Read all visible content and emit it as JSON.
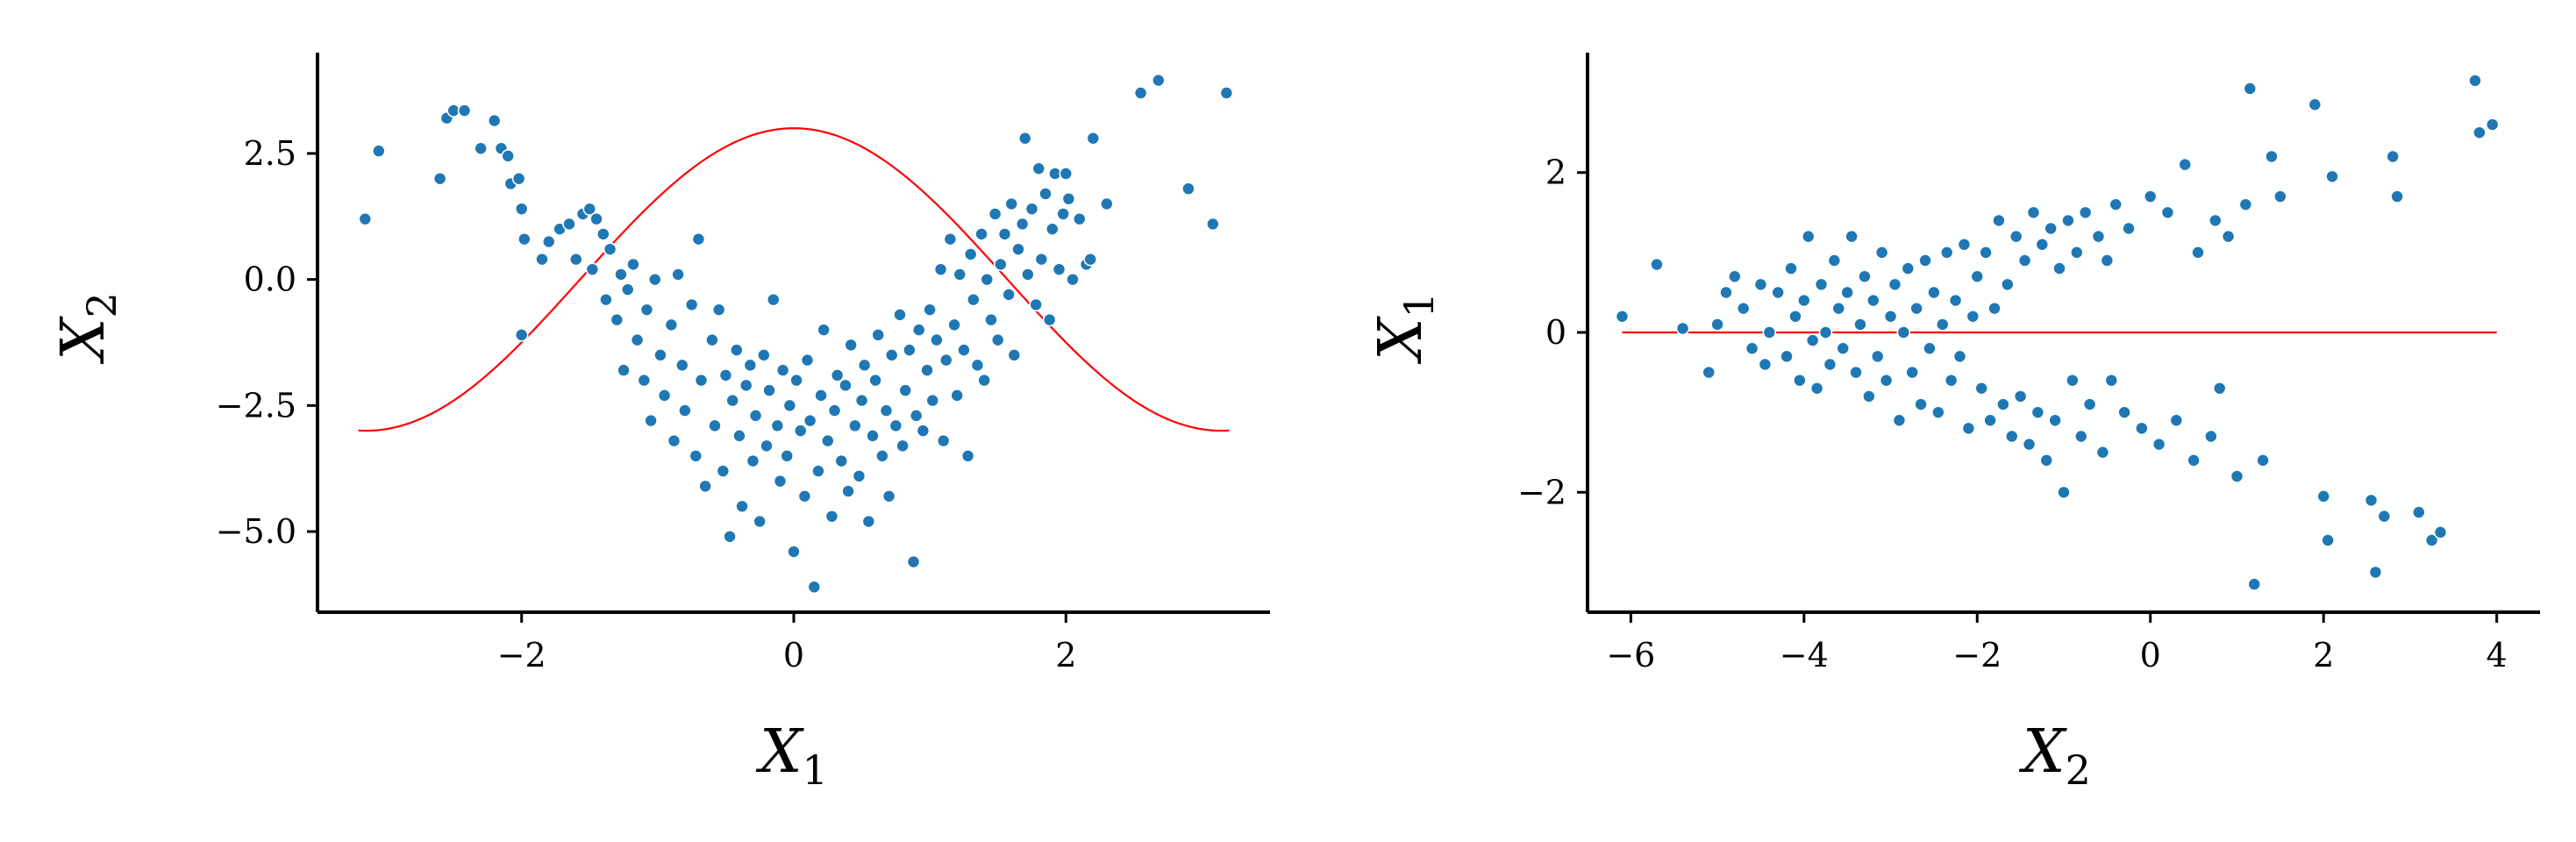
{
  "chart_data": [
    {
      "type": "scatter",
      "xlabel": "X",
      "xlabel_sub": "1",
      "ylabel": "X",
      "ylabel_sub": "2",
      "xlim": [
        -3.5,
        3.5
      ],
      "ylim": [
        -6.6,
        4.5
      ],
      "xticks": [
        -2,
        0,
        2
      ],
      "xtick_labels": [
        "−2",
        "0",
        "2"
      ],
      "yticks": [
        -5.0,
        -2.5,
        0.0,
        2.5
      ],
      "ytick_labels": [
        "−5.0",
        "−2.5",
        "0.0",
        "2.5"
      ],
      "grid": false,
      "point_color": "#1f77b4",
      "curve_color": "#ff0000",
      "curve": {
        "label": "",
        "formula": "3*cos(x)",
        "x_range": [
          -3.2,
          3.2
        ]
      },
      "points": [
        [
          -3.15,
          1.2
        ],
        [
          -3.05,
          2.55
        ],
        [
          -2.6,
          2.0
        ],
        [
          -2.55,
          3.2
        ],
        [
          -2.5,
          3.35
        ],
        [
          -2.42,
          3.35
        ],
        [
          -2.3,
          2.6
        ],
        [
          -2.2,
          3.15
        ],
        [
          -2.15,
          2.6
        ],
        [
          -2.1,
          2.45
        ],
        [
          -2.08,
          1.9
        ],
        [
          -2.02,
          2.0
        ],
        [
          -2.0,
          1.4
        ],
        [
          -2.0,
          -1.1
        ],
        [
          -1.98,
          0.8
        ],
        [
          -1.85,
          0.4
        ],
        [
          -1.8,
          0.75
        ],
        [
          -1.72,
          1.0
        ],
        [
          -1.65,
          1.1
        ],
        [
          -1.6,
          0.4
        ],
        [
          -1.55,
          1.3
        ],
        [
          -1.5,
          1.4
        ],
        [
          -1.48,
          0.2
        ],
        [
          -1.45,
          1.2
        ],
        [
          -1.4,
          0.9
        ],
        [
          -1.38,
          -0.4
        ],
        [
          -1.35,
          0.6
        ],
        [
          -1.3,
          -0.8
        ],
        [
          -1.27,
          0.1
        ],
        [
          -1.25,
          -1.8
        ],
        [
          -1.22,
          -0.2
        ],
        [
          -1.18,
          0.3
        ],
        [
          -1.15,
          -1.2
        ],
        [
          -1.1,
          -2.0
        ],
        [
          -1.08,
          -0.6
        ],
        [
          -1.05,
          -2.8
        ],
        [
          -1.02,
          0.0
        ],
        [
          -0.98,
          -1.5
        ],
        [
          -0.95,
          -2.3
        ],
        [
          -0.9,
          -0.9
        ],
        [
          -0.88,
          -3.2
        ],
        [
          -0.85,
          0.1
        ],
        [
          -0.82,
          -1.7
        ],
        [
          -0.8,
          -2.6
        ],
        [
          -0.75,
          -0.5
        ],
        [
          -0.72,
          -3.5
        ],
        [
          -0.7,
          0.8
        ],
        [
          -0.68,
          -2.0
        ],
        [
          -0.65,
          -4.1
        ],
        [
          -0.6,
          -1.2
        ],
        [
          -0.58,
          -2.9
        ],
        [
          -0.55,
          -0.6
        ],
        [
          -0.52,
          -3.8
        ],
        [
          -0.5,
          -1.9
        ],
        [
          -0.47,
          -5.1
        ],
        [
          -0.45,
          -2.4
        ],
        [
          -0.42,
          -1.4
        ],
        [
          -0.4,
          -3.1
        ],
        [
          -0.38,
          -4.5
        ],
        [
          -0.35,
          -2.1
        ],
        [
          -0.32,
          -1.7
        ],
        [
          -0.3,
          -3.6
        ],
        [
          -0.28,
          -2.7
        ],
        [
          -0.25,
          -4.8
        ],
        [
          -0.22,
          -1.5
        ],
        [
          -0.2,
          -3.3
        ],
        [
          -0.18,
          -2.2
        ],
        [
          -0.15,
          -0.4
        ],
        [
          -0.12,
          -2.9
        ],
        [
          -0.1,
          -4.0
        ],
        [
          -0.08,
          -1.8
        ],
        [
          -0.05,
          -3.5
        ],
        [
          -0.03,
          -2.5
        ],
        [
          0.0,
          -5.4
        ],
        [
          0.02,
          -2.0
        ],
        [
          0.05,
          -3.0
        ],
        [
          0.08,
          -4.3
        ],
        [
          0.1,
          -1.6
        ],
        [
          0.12,
          -2.8
        ],
        [
          0.15,
          -6.1
        ],
        [
          0.18,
          -3.8
        ],
        [
          0.2,
          -2.3
        ],
        [
          0.22,
          -1.0
        ],
        [
          0.25,
          -3.2
        ],
        [
          0.28,
          -4.7
        ],
        [
          0.3,
          -2.6
        ],
        [
          0.32,
          -1.9
        ],
        [
          0.35,
          -3.6
        ],
        [
          0.38,
          -2.1
        ],
        [
          0.4,
          -4.2
        ],
        [
          0.42,
          -1.3
        ],
        [
          0.45,
          -2.9
        ],
        [
          0.48,
          -3.9
        ],
        [
          0.5,
          -2.4
        ],
        [
          0.52,
          -1.7
        ],
        [
          0.55,
          -4.8
        ],
        [
          0.58,
          -3.1
        ],
        [
          0.6,
          -2.0
        ],
        [
          0.62,
          -1.1
        ],
        [
          0.65,
          -3.5
        ],
        [
          0.68,
          -2.6
        ],
        [
          0.7,
          -4.3
        ],
        [
          0.72,
          -1.5
        ],
        [
          0.75,
          -2.9
        ],
        [
          0.78,
          -0.7
        ],
        [
          0.8,
          -3.3
        ],
        [
          0.82,
          -2.2
        ],
        [
          0.85,
          -1.4
        ],
        [
          0.88,
          -5.6
        ],
        [
          0.9,
          -2.7
        ],
        [
          0.92,
          -1.0
        ],
        [
          0.95,
          -3.0
        ],
        [
          0.98,
          -1.8
        ],
        [
          1.0,
          -0.6
        ],
        [
          1.02,
          -2.4
        ],
        [
          1.05,
          -1.2
        ],
        [
          1.08,
          0.2
        ],
        [
          1.1,
          -3.2
        ],
        [
          1.12,
          -1.6
        ],
        [
          1.15,
          0.8
        ],
        [
          1.18,
          -0.9
        ],
        [
          1.2,
          -2.3
        ],
        [
          1.22,
          0.1
        ],
        [
          1.25,
          -1.4
        ],
        [
          1.28,
          -3.5
        ],
        [
          1.3,
          0.5
        ],
        [
          1.32,
          -0.4
        ],
        [
          1.35,
          -1.7
        ],
        [
          1.38,
          0.9
        ],
        [
          1.4,
          -2.0
        ],
        [
          1.42,
          0.0
        ],
        [
          1.45,
          -0.8
        ],
        [
          1.48,
          1.3
        ],
        [
          1.5,
          -1.2
        ],
        [
          1.52,
          0.3
        ],
        [
          1.55,
          0.9
        ],
        [
          1.58,
          -0.3
        ],
        [
          1.6,
          1.5
        ],
        [
          1.62,
          -1.5
        ],
        [
          1.65,
          0.6
        ],
        [
          1.68,
          1.1
        ],
        [
          1.7,
          2.8
        ],
        [
          1.72,
          0.1
        ],
        [
          1.75,
          1.4
        ],
        [
          1.78,
          -0.5
        ],
        [
          1.8,
          2.2
        ],
        [
          1.82,
          0.4
        ],
        [
          1.85,
          1.7
        ],
        [
          1.88,
          -0.8
        ],
        [
          1.9,
          1.0
        ],
        [
          1.92,
          2.1
        ],
        [
          1.95,
          0.2
        ],
        [
          1.98,
          1.3
        ],
        [
          2.0,
          2.1
        ],
        [
          2.02,
          1.6
        ],
        [
          2.05,
          0.0
        ],
        [
          2.1,
          1.2
        ],
        [
          2.15,
          0.3
        ],
        [
          2.18,
          0.4
        ],
        [
          2.2,
          2.8
        ],
        [
          2.3,
          1.5
        ],
        [
          2.55,
          3.7
        ],
        [
          2.68,
          3.95
        ],
        [
          2.9,
          1.8
        ],
        [
          3.08,
          1.1
        ],
        [
          3.18,
          3.7
        ]
      ]
    },
    {
      "type": "scatter",
      "xlabel": "X",
      "xlabel_sub": "2",
      "ylabel": "X",
      "ylabel_sub": "1",
      "xlim": [
        -6.5,
        4.5
      ],
      "ylim": [
        -3.5,
        3.5
      ],
      "xticks": [
        -6,
        -4,
        -2,
        0,
        2,
        4
      ],
      "xtick_labels": [
        "−6",
        "−4",
        "−2",
        "0",
        "2",
        "4"
      ],
      "yticks": [
        -2,
        0,
        2
      ],
      "ytick_labels": [
        "−2",
        "0",
        "2"
      ],
      "grid": false,
      "point_color": "#1f77b4",
      "curve_color": "#ff0000",
      "curve": {
        "label": "",
        "formula": "0",
        "x_range": [
          -6.1,
          4.0
        ]
      },
      "points": [
        [
          -6.1,
          0.2
        ],
        [
          -5.7,
          0.85
        ],
        [
          -5.4,
          0.05
        ],
        [
          -5.1,
          -0.5
        ],
        [
          -5.0,
          0.1
        ],
        [
          -4.9,
          0.5
        ],
        [
          -4.8,
          0.7
        ],
        [
          -4.7,
          0.3
        ],
        [
          -4.6,
          -0.2
        ],
        [
          -4.5,
          0.6
        ],
        [
          -4.45,
          -0.4
        ],
        [
          -4.4,
          0.0
        ],
        [
          -4.3,
          0.5
        ],
        [
          -4.2,
          -0.3
        ],
        [
          -4.15,
          0.8
        ],
        [
          -4.1,
          0.2
        ],
        [
          -4.05,
          -0.6
        ],
        [
          -4.0,
          0.4
        ],
        [
          -3.95,
          1.2
        ],
        [
          -3.9,
          -0.1
        ],
        [
          -3.85,
          -0.7
        ],
        [
          -3.8,
          0.6
        ],
        [
          -3.75,
          0.0
        ],
        [
          -3.7,
          -0.4
        ],
        [
          -3.65,
          0.9
        ],
        [
          -3.6,
          0.3
        ],
        [
          -3.55,
          -0.2
        ],
        [
          -3.5,
          0.5
        ],
        [
          -3.45,
          1.2
        ],
        [
          -3.4,
          -0.5
        ],
        [
          -3.35,
          0.1
        ],
        [
          -3.3,
          0.7
        ],
        [
          -3.25,
          -0.8
        ],
        [
          -3.2,
          0.4
        ],
        [
          -3.15,
          -0.3
        ],
        [
          -3.1,
          1.0
        ],
        [
          -3.05,
          -0.6
        ],
        [
          -3.0,
          0.2
        ],
        [
          -2.95,
          0.6
        ],
        [
          -2.9,
          -1.1
        ],
        [
          -2.85,
          0.0
        ],
        [
          -2.8,
          0.8
        ],
        [
          -2.75,
          -0.5
        ],
        [
          -2.7,
          0.3
        ],
        [
          -2.65,
          -0.9
        ],
        [
          -2.6,
          0.9
        ],
        [
          -2.55,
          -0.2
        ],
        [
          -2.5,
          0.5
        ],
        [
          -2.45,
          -1.0
        ],
        [
          -2.4,
          0.1
        ],
        [
          -2.35,
          1.0
        ],
        [
          -2.3,
          -0.6
        ],
        [
          -2.25,
          0.4
        ],
        [
          -2.2,
          -0.3
        ],
        [
          -2.15,
          1.1
        ],
        [
          -2.1,
          -1.2
        ],
        [
          -2.05,
          0.2
        ],
        [
          -2.0,
          0.7
        ],
        [
          -1.95,
          -0.7
        ],
        [
          -1.9,
          1.0
        ],
        [
          -1.85,
          -1.1
        ],
        [
          -1.8,
          0.3
        ],
        [
          -1.75,
          1.4
        ],
        [
          -1.7,
          -0.9
        ],
        [
          -1.65,
          0.6
        ],
        [
          -1.6,
          -1.3
        ],
        [
          -1.55,
          1.2
        ],
        [
          -1.5,
          -0.8
        ],
        [
          -1.45,
          0.9
        ],
        [
          -1.4,
          -1.4
        ],
        [
          -1.35,
          1.5
        ],
        [
          -1.3,
          -1.0
        ],
        [
          -1.25,
          1.1
        ],
        [
          -1.2,
          -1.6
        ],
        [
          -1.15,
          1.3
        ],
        [
          -1.1,
          -1.1
        ],
        [
          -1.05,
          0.8
        ],
        [
          -1.0,
          -2.0
        ],
        [
          -0.95,
          1.4
        ],
        [
          -0.9,
          -0.6
        ],
        [
          -0.85,
          1.0
        ],
        [
          -0.8,
          -1.3
        ],
        [
          -0.75,
          1.5
        ],
        [
          -0.7,
          -0.9
        ],
        [
          -0.6,
          1.2
        ],
        [
          -0.55,
          -1.5
        ],
        [
          -0.5,
          0.9
        ],
        [
          -0.45,
          -0.6
        ],
        [
          -0.4,
          1.6
        ],
        [
          -0.3,
          -1.0
        ],
        [
          -0.25,
          1.3
        ],
        [
          -0.1,
          -1.2
        ],
        [
          0.0,
          1.7
        ],
        [
          0.1,
          -1.4
        ],
        [
          0.2,
          1.5
        ],
        [
          0.3,
          -1.1
        ],
        [
          0.4,
          2.1
        ],
        [
          0.5,
          -1.6
        ],
        [
          0.55,
          1.0
        ],
        [
          0.7,
          -1.3
        ],
        [
          0.75,
          1.4
        ],
        [
          0.8,
          -0.7
        ],
        [
          0.9,
          1.2
        ],
        [
          1.0,
          -1.8
        ],
        [
          1.1,
          1.6
        ],
        [
          1.15,
          3.05
        ],
        [
          1.2,
          -3.15
        ],
        [
          1.3,
          -1.6
        ],
        [
          1.4,
          2.2
        ],
        [
          1.5,
          1.7
        ],
        [
          1.9,
          2.85
        ],
        [
          2.0,
          -2.05
        ],
        [
          2.05,
          -2.6
        ],
        [
          2.1,
          1.95
        ],
        [
          2.55,
          -2.1
        ],
        [
          2.6,
          -3.0
        ],
        [
          2.7,
          -2.3
        ],
        [
          2.8,
          2.2
        ],
        [
          2.85,
          1.7
        ],
        [
          3.1,
          -2.25
        ],
        [
          3.25,
          -2.6
        ],
        [
          3.35,
          -2.5
        ],
        [
          3.75,
          3.15
        ],
        [
          3.8,
          2.5
        ],
        [
          3.95,
          2.6
        ]
      ]
    }
  ]
}
